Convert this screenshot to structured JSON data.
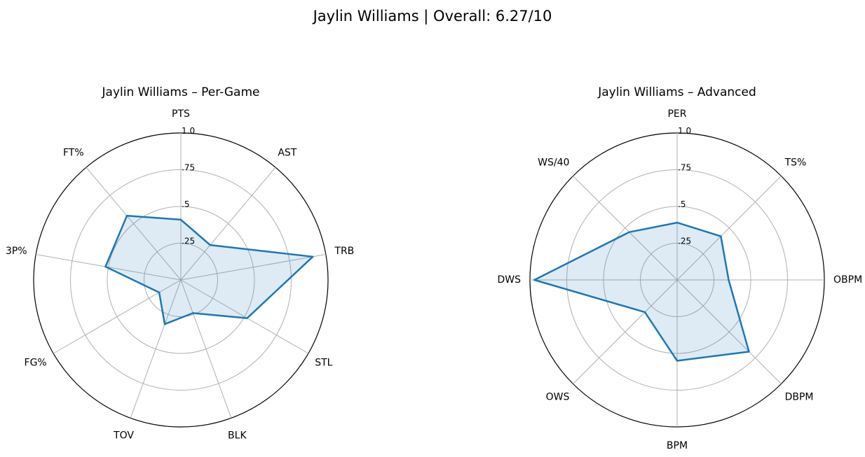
{
  "title": "Jaylin Williams | Overall: 6.27/10",
  "colors": {
    "line": "#1f77b4",
    "fill": "#1f77b4",
    "grid": "#b0b0b0"
  },
  "chart_data": [
    {
      "type": "radar",
      "title": "Jaylin Williams – Per-Game",
      "categories": [
        "PTS",
        "AST",
        "TRB",
        "STL",
        "BLK",
        "TOV",
        "FG%",
        "3P%",
        "FT%"
      ],
      "values": [
        0.41,
        0.31,
        0.91,
        0.52,
        0.24,
        0.32,
        0.17,
        0.52,
        0.57
      ],
      "rlim": [
        0,
        1.0
      ],
      "rticks": [
        0.25,
        0.5,
        0.75,
        1.0
      ],
      "rtick_labels": [
        ".25",
        ".5",
        ".75",
        "1.0"
      ],
      "grid": true
    },
    {
      "type": "radar",
      "title": "Jaylin Williams – Advanced",
      "categories": [
        "PER",
        "TS%",
        "OBPM",
        "DBPM",
        "BPM",
        "OWS",
        "DWS",
        "WS/40"
      ],
      "values": [
        0.39,
        0.42,
        0.35,
        0.69,
        0.55,
        0.31,
        0.97,
        0.46
      ],
      "rlim": [
        0,
        1.0
      ],
      "rticks": [
        0.25,
        0.5,
        0.75,
        1.0
      ],
      "rtick_labels": [
        ".25",
        ".5",
        ".75",
        "1.0"
      ],
      "grid": true
    }
  ]
}
